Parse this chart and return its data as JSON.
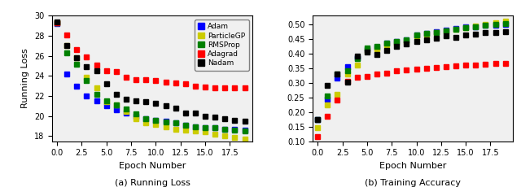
{
  "epochs": [
    0,
    1,
    2,
    3,
    4,
    5,
    6,
    7,
    8,
    9,
    10,
    11,
    12,
    13,
    14,
    15,
    16,
    17,
    18,
    19
  ],
  "loss": {
    "Adam": [
      29.2,
      24.2,
      23.0,
      22.0,
      21.5,
      21.0,
      20.6,
      20.3,
      20.0,
      19.7,
      19.6,
      19.5,
      19.3,
      19.1,
      18.9,
      18.8,
      18.8,
      18.7,
      18.7,
      18.6
    ],
    "ParticleGP": [
      29.3,
      27.0,
      25.8,
      23.9,
      22.8,
      21.4,
      21.1,
      20.5,
      19.7,
      19.3,
      19.2,
      18.9,
      18.7,
      18.6,
      18.5,
      18.4,
      18.2,
      18.0,
      17.9,
      17.7
    ],
    "RMSProp": [
      29.3,
      26.3,
      25.2,
      23.5,
      22.2,
      21.5,
      21.1,
      20.7,
      20.2,
      19.7,
      19.6,
      19.4,
      19.3,
      19.1,
      18.9,
      18.8,
      18.8,
      18.7,
      18.6,
      18.5
    ],
    "Adagrad": [
      29.3,
      28.1,
      26.6,
      25.9,
      25.1,
      24.5,
      24.4,
      23.9,
      23.6,
      23.6,
      23.5,
      23.4,
      23.3,
      23.2,
      23.0,
      22.9,
      22.8,
      22.8,
      22.8,
      22.8
    ],
    "Nadam": [
      29.4,
      27.0,
      25.8,
      24.9,
      24.5,
      23.2,
      22.2,
      21.7,
      21.5,
      21.4,
      21.3,
      21.0,
      20.8,
      20.3,
      20.3,
      20.0,
      19.9,
      19.7,
      19.6,
      19.5
    ]
  },
  "accuracy": {
    "Adam": [
      0.175,
      0.245,
      0.315,
      0.355,
      0.385,
      0.415,
      0.422,
      0.435,
      0.442,
      0.447,
      0.465,
      0.47,
      0.476,
      0.481,
      0.486,
      0.491,
      0.493,
      0.496,
      0.498,
      0.5
    ],
    "ParticleGP": [
      0.145,
      0.225,
      0.26,
      0.33,
      0.362,
      0.41,
      0.416,
      0.43,
      0.436,
      0.442,
      0.461,
      0.466,
      0.472,
      0.477,
      0.483,
      0.489,
      0.494,
      0.501,
      0.506,
      0.511
    ],
    "RMSProp": [
      0.175,
      0.255,
      0.33,
      0.342,
      0.382,
      0.42,
      0.426,
      0.436,
      0.441,
      0.446,
      0.463,
      0.469,
      0.473,
      0.479,
      0.484,
      0.489,
      0.493,
      0.498,
      0.501,
      0.503
    ],
    "Adagrad": [
      0.115,
      0.185,
      0.24,
      0.305,
      0.32,
      0.322,
      0.33,
      0.332,
      0.34,
      0.345,
      0.348,
      0.35,
      0.353,
      0.355,
      0.357,
      0.36,
      0.362,
      0.364,
      0.365,
      0.367
    ],
    "Nadam": [
      0.175,
      0.29,
      0.33,
      0.302,
      0.392,
      0.405,
      0.397,
      0.412,
      0.426,
      0.433,
      0.441,
      0.446,
      0.453,
      0.461,
      0.456,
      0.464,
      0.468,
      0.471,
      0.473,
      0.476
    ]
  },
  "colors": {
    "Adam": "#0000ff",
    "ParticleGP": "#cccc00",
    "RMSProp": "#008000",
    "Adagrad": "#ff0000",
    "Nadam": "#000000"
  },
  "loss_ylim": [
    17.5,
    30.0
  ],
  "acc_ylim": [
    0.1,
    0.53
  ],
  "loss_yticks": [
    18,
    20,
    22,
    24,
    26,
    28,
    30
  ],
  "acc_yticks": [
    0.1,
    0.15,
    0.2,
    0.25,
    0.3,
    0.35,
    0.4,
    0.45,
    0.5
  ],
  "xticks": [
    0.0,
    2.5,
    5.0,
    7.5,
    10.0,
    12.5,
    15.0,
    17.5
  ],
  "xlabel": "Epoch Number",
  "ylabel_left": "Running Loss",
  "subtitle_left": "(a) Running Loss",
  "subtitle_right": "(b) Training Accuracy",
  "marker": "s",
  "marker_size": 5,
  "legend_order": [
    "Adam",
    "ParticleGP",
    "RMSProp",
    "Adagrad",
    "Nadam"
  ],
  "bg_color": "#f0f0f0"
}
